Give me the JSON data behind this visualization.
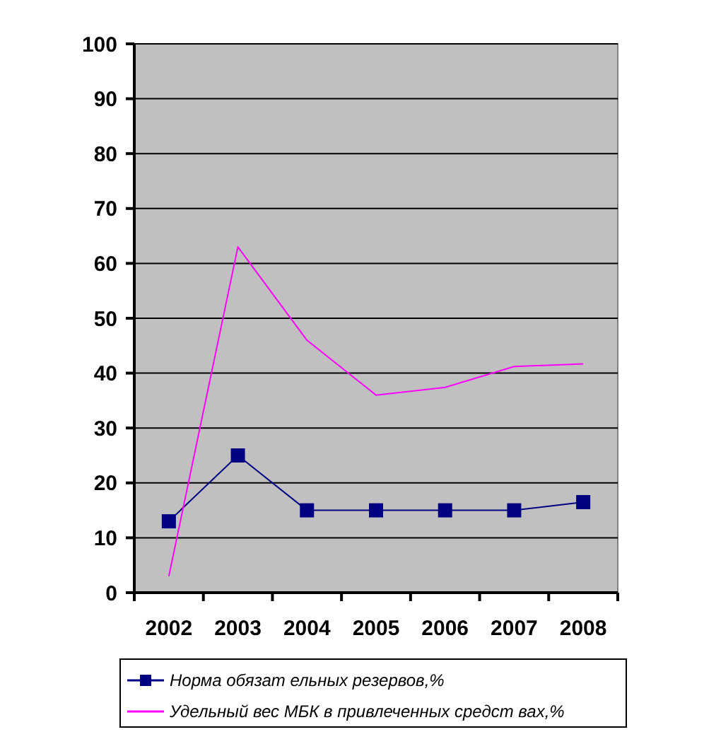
{
  "chart_data": {
    "type": "line",
    "categories": [
      "2002",
      "2003",
      "2004",
      "2005",
      "2006",
      "2007",
      "2008"
    ],
    "series": [
      {
        "name": "Норма обязат ельных резервов,%",
        "color": "#000080",
        "marker": "square",
        "values": [
          13,
          25,
          15,
          15,
          15,
          15,
          16.5
        ]
      },
      {
        "name": "Удельный вес МБК  в привлеченных средст вах,%",
        "color": "#ff00ff",
        "marker": "none",
        "values": [
          3,
          63,
          46,
          36,
          37.4,
          41.2,
          41.7
        ]
      }
    ],
    "ylim": [
      0,
      100
    ],
    "yticks": [
      0,
      10,
      20,
      30,
      40,
      50,
      60,
      70,
      80,
      90,
      100
    ],
    "grid": "y",
    "legend": "bottom"
  }
}
